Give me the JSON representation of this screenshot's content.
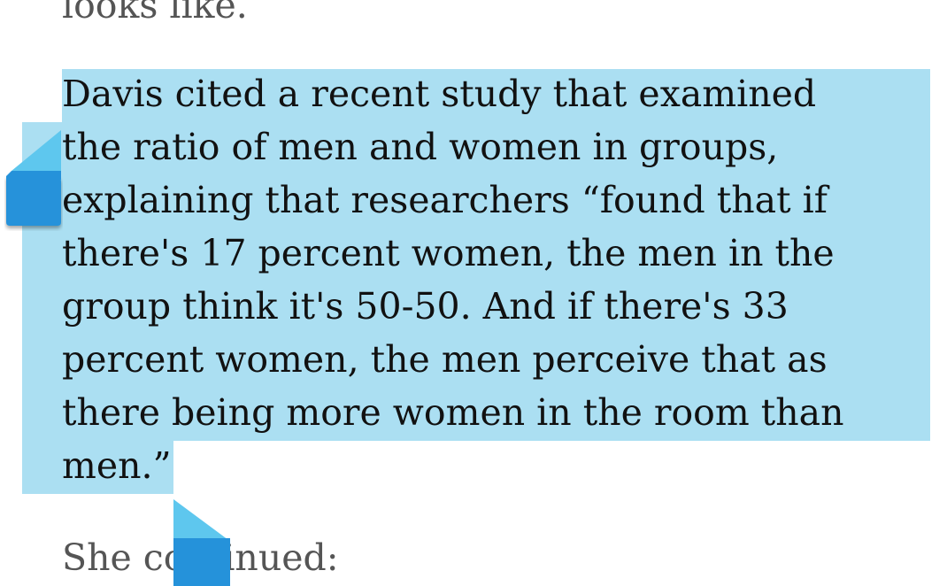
{
  "article": {
    "prev_line": "looks like.",
    "quote_lines": [
      "Davis cited a recent study that examined",
      "the ratio of men and women in groups,",
      "explaining that researchers “found that if",
      "there's 17 percent women, the men in the",
      "group think it's 50-50. And if there's 33",
      "percent women, the men perceive that as",
      "there being more women in the room than",
      "men.”"
    ],
    "next_line": "She continued:"
  },
  "selection": {
    "highlight_color": "#abdff2",
    "handle_color": "#1e90d8"
  }
}
